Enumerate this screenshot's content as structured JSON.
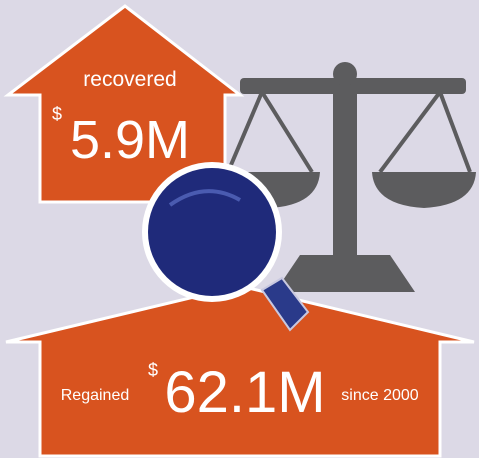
{
  "top": {
    "label": "recovered",
    "currency": "$",
    "amount": "5.9M"
  },
  "bottom": {
    "prefix": "Regained",
    "currency": "$",
    "amount": "62.1M",
    "suffix": "since 2000"
  }
}
